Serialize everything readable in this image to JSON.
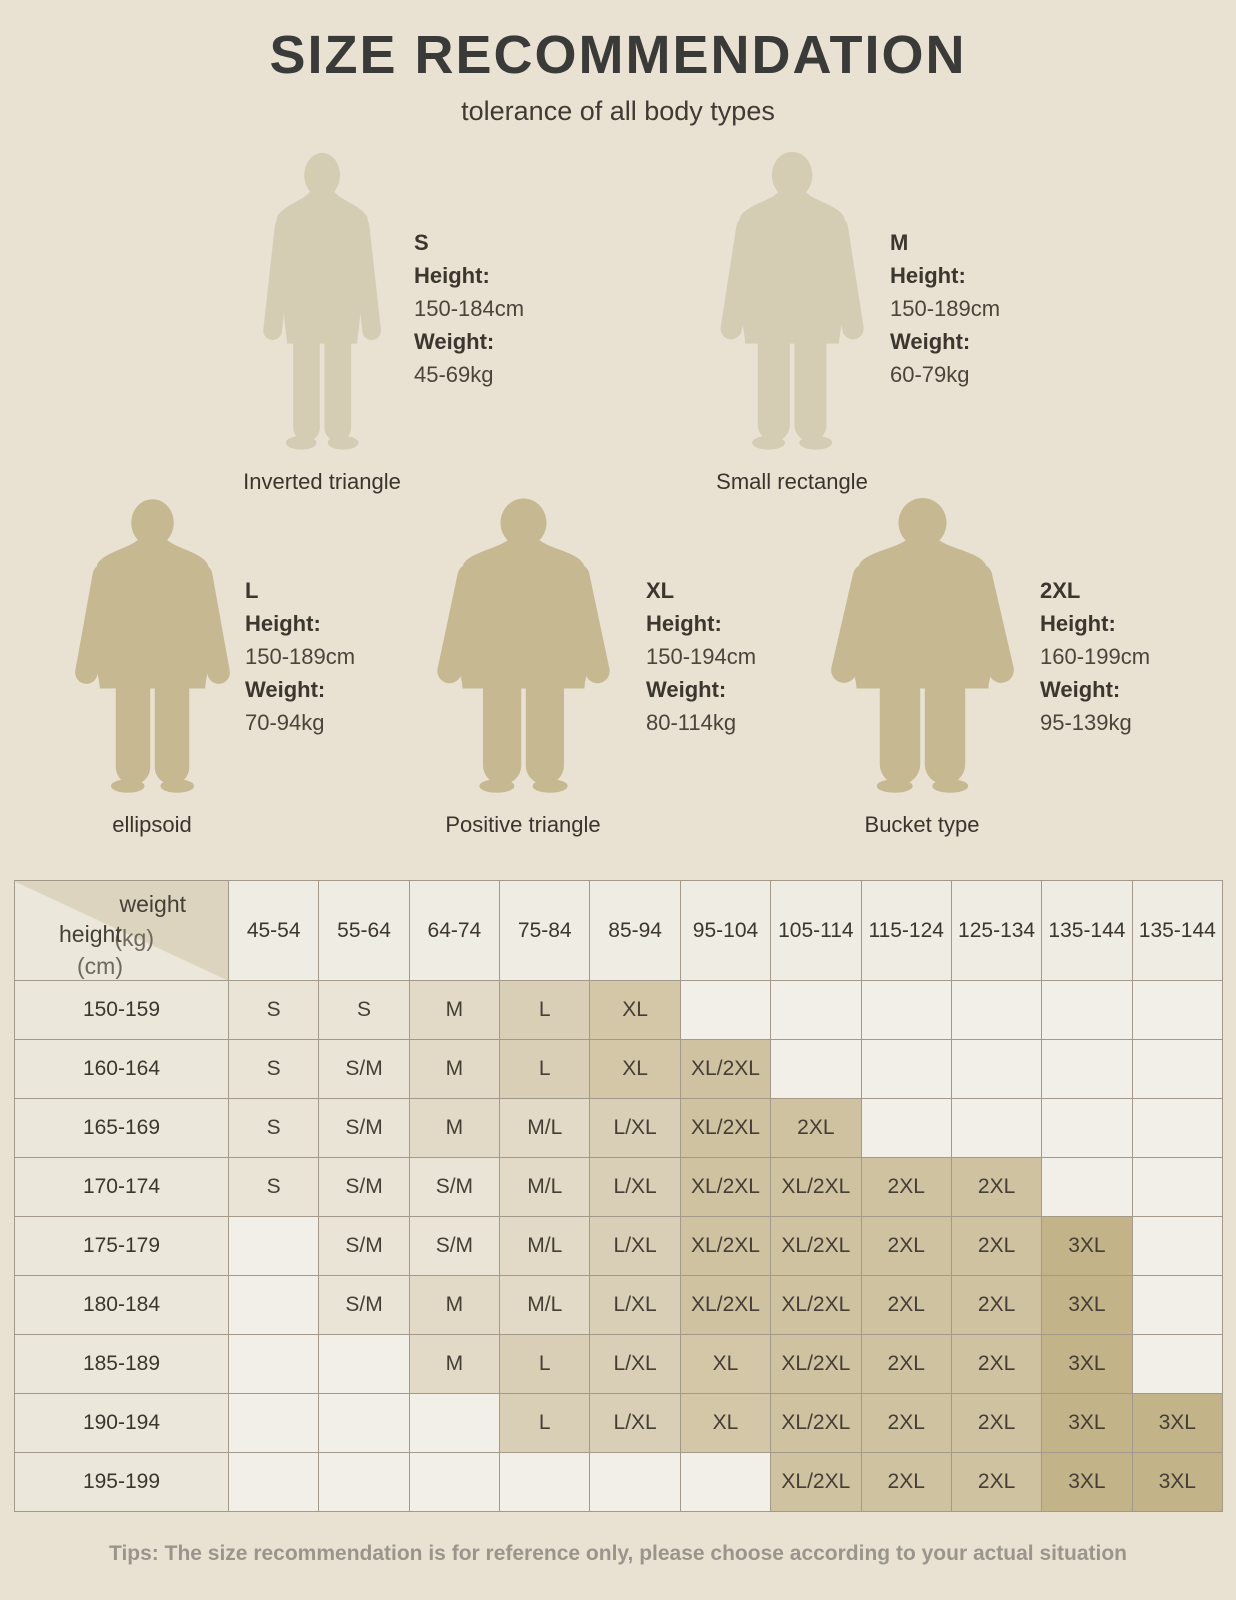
{
  "page": {
    "title": "SIZE RECOMMENDATION",
    "subtitle": "tolerance of all body types",
    "tips": "Tips: The size recommendation is for reference only, please choose according to your actual situation"
  },
  "figures": [
    {
      "size": "S",
      "height_label": "Height:",
      "height_value": "150-184cm",
      "weight_label": "Weight:",
      "weight_value": "45-69kg",
      "body_type": "Inverted triangle"
    },
    {
      "size": "M",
      "height_label": "Height:",
      "height_value": "150-189cm",
      "weight_label": "Weight:",
      "weight_value": "60-79kg",
      "body_type": "Small rectangle"
    },
    {
      "size": "L",
      "height_label": "Height:",
      "height_value": "150-189cm",
      "weight_label": "Weight:",
      "weight_value": "70-94kg",
      "body_type": "ellipsoid"
    },
    {
      "size": "XL",
      "height_label": "Height:",
      "height_value": "150-194cm",
      "weight_label": "Weight:",
      "weight_value": "80-114kg",
      "body_type": "Positive triangle"
    },
    {
      "size": "2XL",
      "height_label": "Height:",
      "height_value": "160-199cm",
      "weight_label": "Weight:",
      "weight_value": "95-139kg",
      "body_type": "Bucket type"
    }
  ],
  "table": {
    "corner": {
      "col_label": "weight",
      "col_unit": "(kg)",
      "row_label": "height",
      "row_unit": "(cm)"
    },
    "weight_cols": [
      "45-54",
      "55-64",
      "64-74",
      "75-84",
      "85-94",
      "95-104",
      "105-114",
      "115-124",
      "125-134",
      "135-144",
      "135-144"
    ],
    "rows": [
      {
        "height": "150-159",
        "cells": [
          "S",
          "S",
          "M",
          "L",
          "XL",
          "",
          "",
          "",
          "",
          "",
          ""
        ]
      },
      {
        "height": "160-164",
        "cells": [
          "S",
          "S/M",
          "M",
          "L",
          "XL",
          "XL/2XL",
          "",
          "",
          "",
          "",
          ""
        ]
      },
      {
        "height": "165-169",
        "cells": [
          "S",
          "S/M",
          "M",
          "M/L",
          "L/XL",
          "XL/2XL",
          "2XL",
          "",
          "",
          "",
          ""
        ]
      },
      {
        "height": "170-174",
        "cells": [
          "S",
          "S/M",
          "S/M",
          "M/L",
          "L/XL",
          "XL/2XL",
          "XL/2XL",
          "2XL",
          "2XL",
          "",
          ""
        ]
      },
      {
        "height": "175-179",
        "cells": [
          "",
          "S/M",
          "S/M",
          "M/L",
          "L/XL",
          "XL/2XL",
          "XL/2XL",
          "2XL",
          "2XL",
          "3XL",
          ""
        ]
      },
      {
        "height": "180-184",
        "cells": [
          "",
          "S/M",
          "M",
          "M/L",
          "L/XL",
          "XL/2XL",
          "XL/2XL",
          "2XL",
          "2XL",
          "3XL",
          ""
        ]
      },
      {
        "height": "185-189",
        "cells": [
          "",
          "",
          "M",
          "L",
          "L/XL",
          "XL",
          "XL/2XL",
          "2XL",
          "2XL",
          "3XL",
          ""
        ]
      },
      {
        "height": "190-194",
        "cells": [
          "",
          "",
          "",
          "L",
          "L/XL",
          "XL",
          "XL/2XL",
          "2XL",
          "2XL",
          "3XL",
          "3XL"
        ]
      },
      {
        "height": "195-199",
        "cells": [
          "",
          "",
          "",
          "",
          "",
          "",
          "XL/2XL",
          "2XL",
          "2XL",
          "3XL",
          "3XL"
        ]
      }
    ]
  },
  "colors": {
    "background": "#e9e2d3",
    "title_ink": "#3a3a38",
    "border": "#a2998a",
    "tips_text": "#9a958c",
    "silhouette_light": "#d5ccb4",
    "silhouette_dark": "#c6b991",
    "corner_triangle": "#dcd4bf",
    "header_bg": "#efece3",
    "row_header_bg": "#ebe7da",
    "cell_shades": {
      "empty": "#f1efe8",
      "s_sm": "#eae4d7",
      "m_ml": "#e2dac6",
      "l_lxl": "#d9cfb7",
      "xl": "#d3c7a8",
      "xl2xl_2xl": "#cfc2a1",
      "3xl": "#c2b389"
    }
  }
}
